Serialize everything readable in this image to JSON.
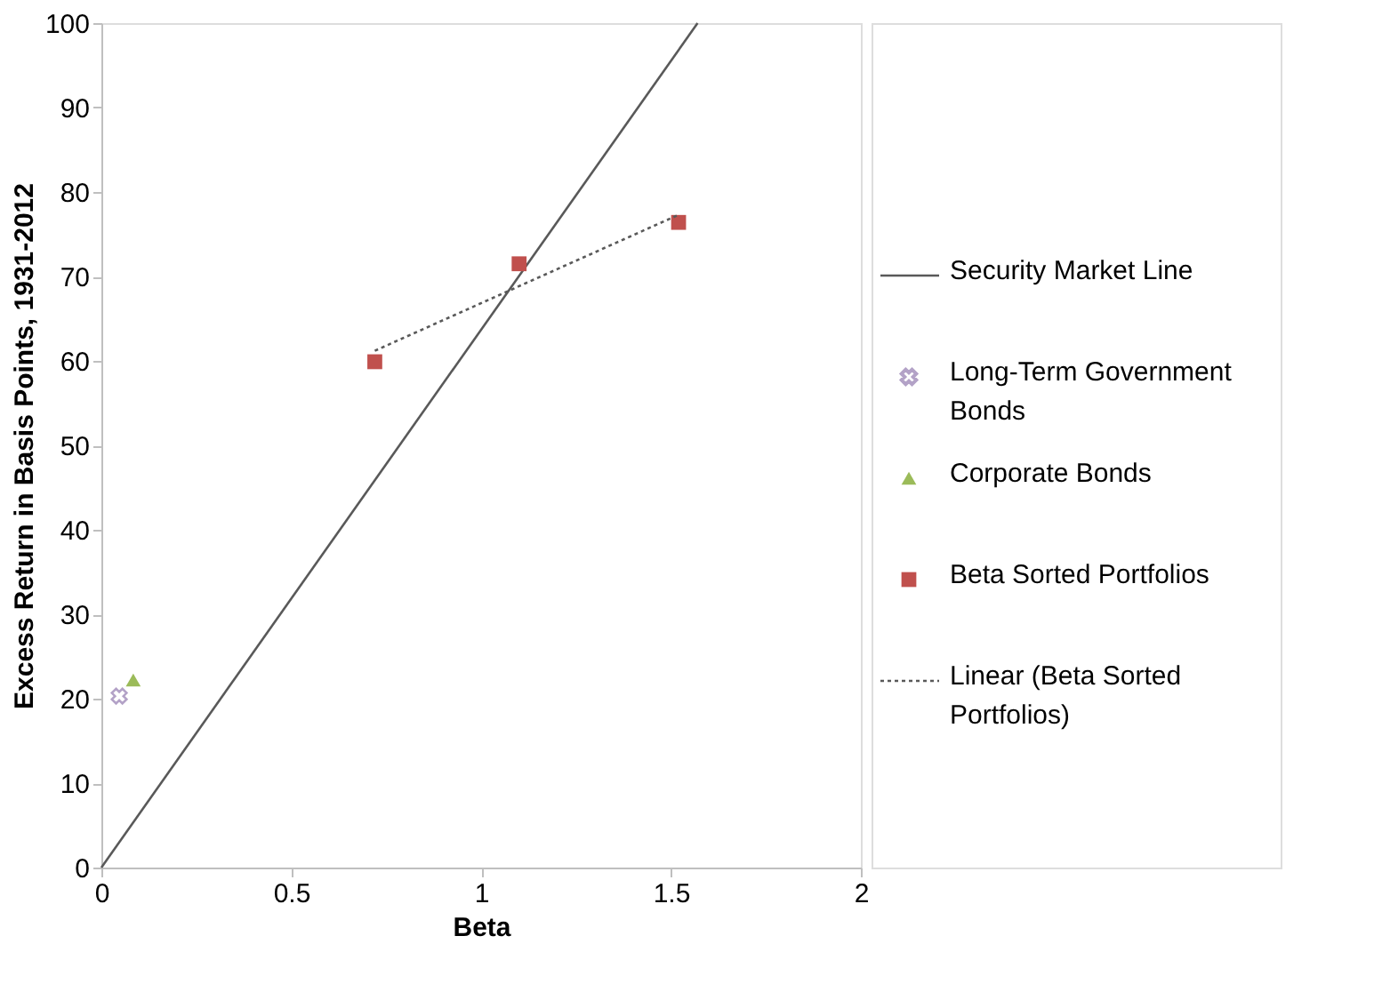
{
  "chart_data": {
    "type": "scatter",
    "xlabel": "Beta",
    "ylabel": "Excess Return in Basis Points, 1931-2012",
    "xlim": [
      0,
      2
    ],
    "xticks": [
      {
        "value": 0,
        "label": "0"
      },
      0.5,
      {
        "value": 1,
        "label": "1"
      },
      1.5,
      {
        "value": 2,
        "label": "2"
      }
    ],
    "ylim": [
      0,
      100
    ],
    "yticks": [
      0,
      10,
      20,
      30,
      40,
      50,
      60,
      70,
      80,
      90,
      100
    ],
    "grid": false,
    "legend": "right",
    "series": [
      {
        "name": "Security Market Line",
        "type": "line",
        "color": "#595959",
        "line_style": "solid",
        "marker": "none",
        "x": [
          0,
          1.57
        ],
        "values": [
          0,
          100
        ]
      },
      {
        "name": "Long-Term Government Bonds",
        "type": "scatter",
        "color": "#b3a2c7",
        "marker": "cross",
        "x": [
          0.047
        ],
        "values": [
          20.3
        ]
      },
      {
        "name": "Corporate Bonds",
        "type": "scatter",
        "color": "#9bbb59",
        "marker": "triangle",
        "x": [
          0.084
        ],
        "values": [
          22.2
        ]
      },
      {
        "name": "Beta Sorted Portfolios",
        "type": "scatter",
        "color": "#c0504d",
        "marker": "square",
        "x": [
          0.72,
          1.1,
          1.52
        ],
        "values": [
          59.9,
          71.5,
          76.4
        ]
      },
      {
        "name": "Linear (Beta Sorted Portfolios)",
        "type": "line",
        "color": "#595959",
        "line_style": "dotted",
        "marker": "none",
        "x": [
          0.72,
          1.52
        ],
        "values": [
          61.2,
          77.3
        ]
      }
    ]
  }
}
